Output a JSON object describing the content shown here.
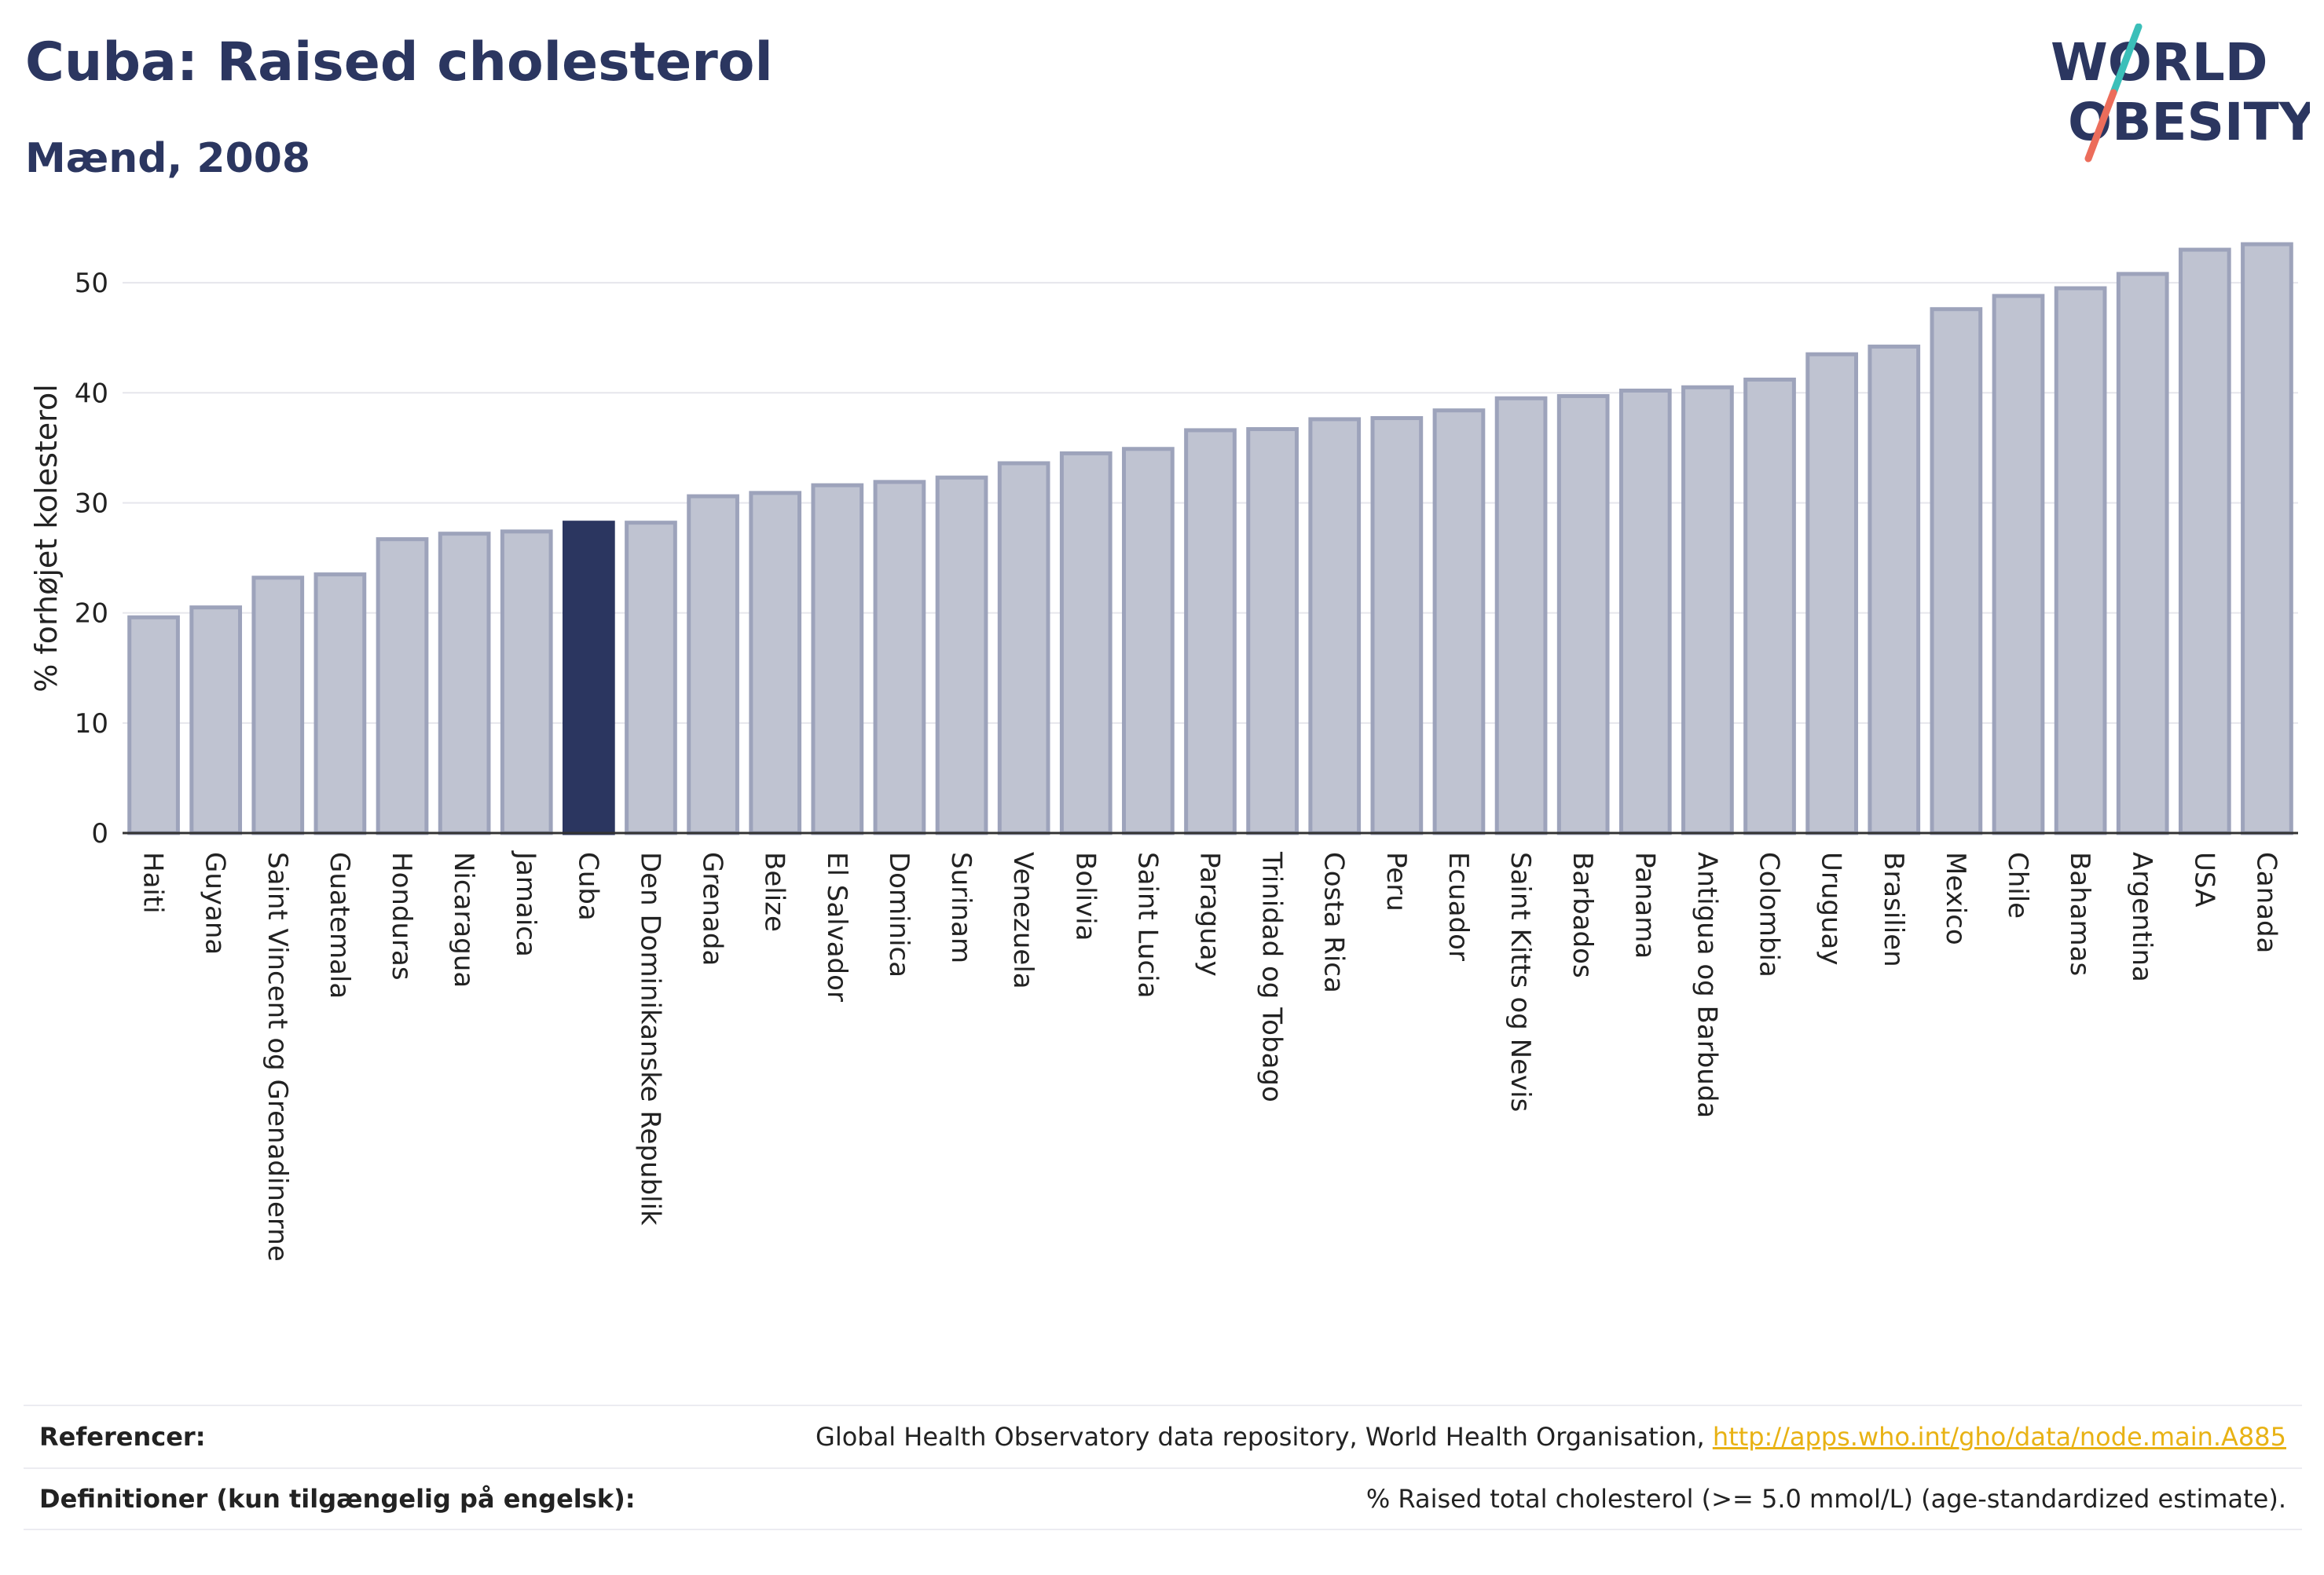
{
  "header": {
    "title": "Cuba: Raised cholesterol",
    "subtitle": "Mænd, 2008"
  },
  "logo": {
    "line1": "WORLD",
    "line2": "OBESITY",
    "colors": {
      "text": "#2b3660",
      "slash_top": "#3bbfb9",
      "slash_bottom": "#ec6d5b"
    }
  },
  "colors": {
    "bar": "#bfc3d1",
    "bar_stroke": "#9da3bb",
    "highlight": "#2b3660",
    "grid": "#e6e6ec",
    "axis": "#333333"
  },
  "chart_data": {
    "type": "bar",
    "ylabel": "% forhøjet kolesterol",
    "ylim": [
      0,
      55
    ],
    "yticks": [
      0,
      10,
      20,
      30,
      40,
      50
    ],
    "grid": true,
    "highlight": "Cuba",
    "categories": [
      "Haiti",
      "Guyana",
      "Saint Vincent og Grenadinerne",
      "Guatemala",
      "Honduras",
      "Nicaragua",
      "Jamaica",
      "Cuba",
      "Den Dominikanske Republik",
      "Grenada",
      "Belize",
      "El Salvador",
      "Dominica",
      "Surinam",
      "Venezuela",
      "Bolivia",
      "Saint Lucia",
      "Paraguay",
      "Trinidad og Tobago",
      "Costa Rica",
      "Peru",
      "Ecuador",
      "Saint Kitts og Nevis",
      "Barbados",
      "Panama",
      "Antigua og Barbuda",
      "Colombia",
      "Uruguay",
      "Brasilien",
      "Mexico",
      "Chile",
      "Bahamas",
      "Argentina",
      "USA",
      "Canada"
    ],
    "values": [
      19.6,
      20.5,
      23.2,
      23.5,
      26.7,
      27.2,
      27.4,
      28.2,
      28.2,
      30.6,
      30.9,
      31.6,
      31.9,
      32.3,
      33.6,
      34.5,
      34.9,
      36.6,
      36.7,
      37.6,
      37.7,
      38.4,
      39.5,
      39.7,
      40.2,
      40.5,
      41.2,
      43.5,
      44.2,
      47.6,
      48.8,
      49.5,
      50.8,
      53.0,
      53.5
    ]
  },
  "footer": {
    "references_label": "Referencer:",
    "references_text": "Global Health Observatory data repository, World Health Organisation, ",
    "references_link": "http://apps.who.int/gho/data/node.main.A885",
    "definitions_label": "Definitioner (kun tilgængelig på engelsk):",
    "definitions_text": "% Raised total cholesterol (>= 5.0 mmol/L) (age-standardized estimate)."
  }
}
